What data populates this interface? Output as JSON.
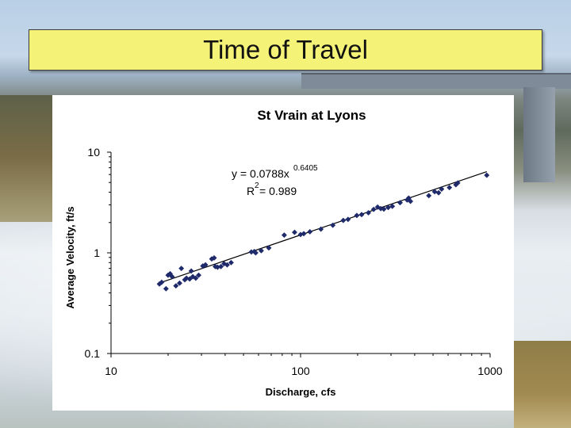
{
  "slide": {
    "title": "Time of Travel"
  },
  "colors": {
    "title_box": "#f5f377",
    "marker": "#1f2a6b",
    "trendline": "#000000"
  },
  "chart_data": {
    "type": "scatter",
    "title": "St Vrain at Lyons",
    "xlabel": "Discharge, cfs",
    "ylabel": "Average Velocity, ft/s",
    "x_scale": "log",
    "y_scale": "log",
    "xlim": [
      10,
      1000
    ],
    "ylim": [
      0.1,
      10
    ],
    "x_tick_labels": [
      "10",
      "100",
      "1000"
    ],
    "y_tick_labels": [
      "10",
      "1",
      "0.1"
    ],
    "x_ticks": [
      10,
      100,
      1000
    ],
    "y_ticks": [
      10,
      1,
      0.1
    ],
    "grid": false,
    "trendline": {
      "type": "power",
      "a": 0.0788,
      "b": 0.6405,
      "equation_prefix": "y = 0.0788x",
      "equation_exponent": "0.6405",
      "r2_prefix": "R",
      "r2_exp": "2",
      "r2_suffix": " = 0.989"
    },
    "points": [
      {
        "x": 18,
        "y": 0.49
      },
      {
        "x": 18.5,
        "y": 0.51
      },
      {
        "x": 19.5,
        "y": 0.44
      },
      {
        "x": 20,
        "y": 0.6
      },
      {
        "x": 20.5,
        "y": 0.62
      },
      {
        "x": 21,
        "y": 0.58
      },
      {
        "x": 22,
        "y": 0.47
      },
      {
        "x": 23,
        "y": 0.5
      },
      {
        "x": 23.5,
        "y": 0.7
      },
      {
        "x": 24.5,
        "y": 0.54
      },
      {
        "x": 25,
        "y": 0.56
      },
      {
        "x": 26,
        "y": 0.55
      },
      {
        "x": 26.5,
        "y": 0.66
      },
      {
        "x": 27,
        "y": 0.58
      },
      {
        "x": 28,
        "y": 0.56
      },
      {
        "x": 29,
        "y": 0.6
      },
      {
        "x": 30.5,
        "y": 0.74
      },
      {
        "x": 31.5,
        "y": 0.76
      },
      {
        "x": 34,
        "y": 0.87
      },
      {
        "x": 35,
        "y": 0.89
      },
      {
        "x": 35.5,
        "y": 0.73
      },
      {
        "x": 36.5,
        "y": 0.72
      },
      {
        "x": 38,
        "y": 0.73
      },
      {
        "x": 39.5,
        "y": 0.78
      },
      {
        "x": 41,
        "y": 0.76
      },
      {
        "x": 43,
        "y": 0.8
      },
      {
        "x": 55,
        "y": 1.02
      },
      {
        "x": 57,
        "y": 1.03
      },
      {
        "x": 58,
        "y": 1.0
      },
      {
        "x": 62,
        "y": 1.05
      },
      {
        "x": 68,
        "y": 1.12
      },
      {
        "x": 82,
        "y": 1.5
      },
      {
        "x": 93,
        "y": 1.6
      },
      {
        "x": 100,
        "y": 1.52
      },
      {
        "x": 104,
        "y": 1.55
      },
      {
        "x": 112,
        "y": 1.62
      },
      {
        "x": 128,
        "y": 1.72
      },
      {
        "x": 148,
        "y": 1.88
      },
      {
        "x": 168,
        "y": 2.1
      },
      {
        "x": 178,
        "y": 2.15
      },
      {
        "x": 198,
        "y": 2.35
      },
      {
        "x": 210,
        "y": 2.4
      },
      {
        "x": 228,
        "y": 2.5
      },
      {
        "x": 243,
        "y": 2.7
      },
      {
        "x": 255,
        "y": 2.85
      },
      {
        "x": 265,
        "y": 2.75
      },
      {
        "x": 275,
        "y": 2.72
      },
      {
        "x": 290,
        "y": 2.82
      },
      {
        "x": 305,
        "y": 2.9
      },
      {
        "x": 335,
        "y": 3.15
      },
      {
        "x": 365,
        "y": 3.35
      },
      {
        "x": 372,
        "y": 3.5
      },
      {
        "x": 380,
        "y": 3.25
      },
      {
        "x": 475,
        "y": 3.7
      },
      {
        "x": 510,
        "y": 4.05
      },
      {
        "x": 535,
        "y": 3.95
      },
      {
        "x": 555,
        "y": 4.3
      },
      {
        "x": 610,
        "y": 4.45
      },
      {
        "x": 660,
        "y": 4.75
      },
      {
        "x": 675,
        "y": 4.95
      },
      {
        "x": 960,
        "y": 5.9
      }
    ]
  }
}
